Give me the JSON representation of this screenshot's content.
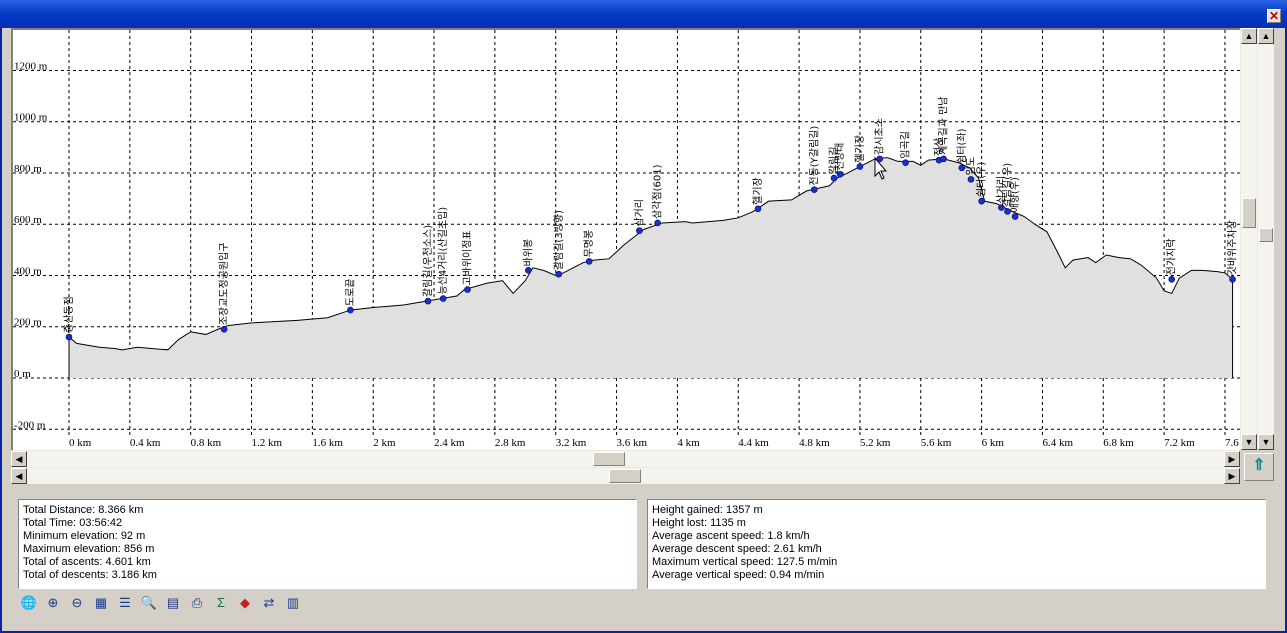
{
  "window": {
    "close_glyph": "✕"
  },
  "chart_data": {
    "type": "area",
    "ylabels": [
      "1200 m",
      "1000 m",
      "800 m",
      "600 m",
      "400 m",
      "200 m",
      "0 m",
      "-200 m"
    ],
    "xlabels": [
      "0 km",
      "0.4 km",
      "0.8 km",
      "1.2 km",
      "1.6 km",
      "2 km",
      "2.4 km",
      "2.8 km",
      "3.2 km",
      "3.6 km",
      "4 km",
      "4.4 km",
      "4.8 km",
      "5.2 km",
      "5.6 km",
      "6 km",
      "6.4 km",
      "6.8 km",
      "7.2 km",
      "7.6"
    ],
    "ylim": [
      -200,
      1400
    ],
    "xlim_km": [
      0,
      7.65
    ],
    "grid": true,
    "fill_color": "#e0e0e0",
    "line_color": "#000000",
    "point_color": "#1a2fd0",
    "profile": [
      [
        0,
        160
      ],
      [
        0.05,
        135
      ],
      [
        0.2,
        120
      ],
      [
        0.3,
        115
      ],
      [
        0.35,
        110
      ],
      [
        0.45,
        120
      ],
      [
        0.6,
        112
      ],
      [
        0.65,
        110
      ],
      [
        0.72,
        150
      ],
      [
        0.8,
        180
      ],
      [
        0.9,
        170
      ],
      [
        1.0,
        195
      ],
      [
        1.05,
        205
      ],
      [
        1.2,
        215
      ],
      [
        1.5,
        225
      ],
      [
        1.7,
        235
      ],
      [
        1.85,
        265
      ],
      [
        2.0,
        275
      ],
      [
        2.2,
        285
      ],
      [
        2.35,
        300
      ],
      [
        2.45,
        310
      ],
      [
        2.55,
        320
      ],
      [
        2.6,
        345
      ],
      [
        2.75,
        370
      ],
      [
        2.85,
        380
      ],
      [
        2.92,
        330
      ],
      [
        3.0,
        380
      ],
      [
        3.05,
        430
      ],
      [
        3.12,
        420
      ],
      [
        3.2,
        400
      ],
      [
        3.25,
        410
      ],
      [
        3.38,
        450
      ],
      [
        3.45,
        460
      ],
      [
        3.55,
        465
      ],
      [
        3.65,
        520
      ],
      [
        3.78,
        580
      ],
      [
        3.9,
        605
      ],
      [
        4.05,
        610
      ],
      [
        4.1,
        605
      ],
      [
        4.3,
        615
      ],
      [
        4.4,
        625
      ],
      [
        4.5,
        650
      ],
      [
        4.6,
        690
      ],
      [
        4.75,
        695
      ],
      [
        4.85,
        730
      ],
      [
        5.0,
        750
      ],
      [
        5.05,
        780
      ],
      [
        5.12,
        800
      ],
      [
        5.2,
        825
      ],
      [
        5.3,
        855
      ],
      [
        5.38,
        860
      ],
      [
        5.45,
        845
      ],
      [
        5.55,
        845
      ],
      [
        5.6,
        830
      ],
      [
        5.65,
        850
      ],
      [
        5.75,
        855
      ],
      [
        5.85,
        840
      ],
      [
        5.92,
        820
      ],
      [
        5.98,
        780
      ],
      [
        6.02,
        690
      ],
      [
        6.1,
        680
      ],
      [
        6.2,
        650
      ],
      [
        6.28,
        630
      ],
      [
        6.35,
        600
      ],
      [
        6.43,
        570
      ],
      [
        6.5,
        490
      ],
      [
        6.55,
        430
      ],
      [
        6.6,
        460
      ],
      [
        6.7,
        470
      ],
      [
        6.75,
        450
      ],
      [
        6.82,
        480
      ],
      [
        6.9,
        470
      ],
      [
        6.98,
        465
      ],
      [
        7.05,
        440
      ],
      [
        7.15,
        390
      ],
      [
        7.2,
        340
      ],
      [
        7.25,
        330
      ],
      [
        7.3,
        390
      ],
      [
        7.38,
        420
      ],
      [
        7.45,
        420
      ],
      [
        7.55,
        415
      ],
      [
        7.6,
        410
      ],
      [
        7.65,
        385
      ]
    ],
    "waypoints": [
      {
        "x": 0.0,
        "y": 160,
        "label": "중산동점"
      },
      {
        "x": 1.02,
        "y": 190,
        "label": "조장교도정공원입구"
      },
      {
        "x": 1.85,
        "y": 265,
        "label": "도로끝"
      },
      {
        "x": 2.36,
        "y": 300,
        "label": "갈림길(우천소스)"
      },
      {
        "x": 2.46,
        "y": 310,
        "label": "능선4거리(산길초입)"
      },
      {
        "x": 2.62,
        "y": 345,
        "label": "고바위이정표"
      },
      {
        "x": 3.02,
        "y": 420,
        "label": "바위봉"
      },
      {
        "x": 3.22,
        "y": 405,
        "label": "갈림길(3방향)"
      },
      {
        "x": 3.42,
        "y": 455,
        "label": "무명봉"
      },
      {
        "x": 3.75,
        "y": 575,
        "label": "삼거리"
      },
      {
        "x": 3.87,
        "y": 605,
        "label": "삼각점(601)"
      },
      {
        "x": 4.53,
        "y": 660,
        "label": "헬기장"
      },
      {
        "x": 4.9,
        "y": 735,
        "label": "전동(Y갈림길)"
      },
      {
        "x": 5.03,
        "y": 780,
        "label": "갈림길"
      },
      {
        "x": 5.07,
        "y": 795,
        "label": "전망대"
      },
      {
        "x": 5.2,
        "y": 825,
        "label": "헬기장"
      },
      {
        "x": 5.33,
        "y": 855,
        "label": "감시초소"
      },
      {
        "x": 5.5,
        "y": 840,
        "label": "임곡길"
      },
      {
        "x": 5.72,
        "y": 850,
        "label": "정상"
      },
      {
        "x": 5.75,
        "y": 855,
        "label": "계곡길과 만남"
      },
      {
        "x": 5.87,
        "y": 820,
        "label": "쉼터(좌)"
      },
      {
        "x": 5.93,
        "y": 775,
        "label": "임도"
      },
      {
        "x": 6.0,
        "y": 690,
        "label": "쉼터(우)"
      },
      {
        "x": 6.13,
        "y": 665,
        "label": "삼거리"
      },
      {
        "x": 6.17,
        "y": 650,
        "label": "갈림길(우)"
      },
      {
        "x": 6.22,
        "y": 630,
        "label": "애향(우)"
      },
      {
        "x": 7.25,
        "y": 385,
        "label": "전가지락"
      },
      {
        "x": 7.65,
        "y": 385,
        "label": "갓바위주차장"
      }
    ]
  },
  "stats_left": [
    "Total Distance: 8.366 km",
    "Total Time: 03:56:42",
    "Minimum elevation: 92 m",
    "Maximum elevation: 856 m",
    "Total of ascents: 4.601 km",
    "Total of descents: 3.186 km"
  ],
  "stats_right": [
    "Height gained: 1357 m",
    "Height lost: 1135 m",
    "Average ascent speed: 1.8 km/h",
    "Average descent speed: 2.61 km/h",
    "Maximum vertical speed: 127.5 m/min",
    "Average vertical speed: 0.94 m/min"
  ],
  "toolbar": [
    {
      "name": "globe-icon",
      "glyph": "🌐"
    },
    {
      "name": "zoom-in-icon",
      "glyph": "⊕"
    },
    {
      "name": "zoom-out-icon",
      "glyph": "⊖"
    },
    {
      "name": "grid-icon",
      "glyph": "▦"
    },
    {
      "name": "list-settings-icon",
      "glyph": "☰"
    },
    {
      "name": "find-icon",
      "glyph": "🔍"
    },
    {
      "name": "document-icon",
      "glyph": "▤"
    },
    {
      "name": "print-icon",
      "glyph": "⎙"
    },
    {
      "name": "sum-icon",
      "glyph": "Σ"
    },
    {
      "name": "red-shape-icon",
      "glyph": "◆"
    },
    {
      "name": "swap-arrows-icon",
      "glyph": "⇄"
    },
    {
      "name": "book-icon",
      "glyph": "▥"
    }
  ]
}
